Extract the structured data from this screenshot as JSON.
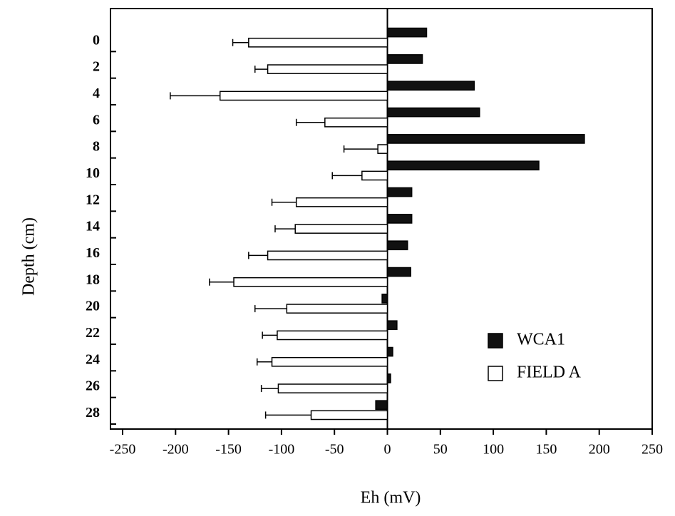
{
  "chart_data": {
    "type": "hbar",
    "xlabel": "Eh (mV)",
    "ylabel": "Depth (cm)",
    "categories": [
      "0",
      "2",
      "4",
      "6",
      "8",
      "10",
      "12",
      "14",
      "16",
      "18",
      "20",
      "22",
      "24",
      "26",
      "28"
    ],
    "series": [
      {
        "name": "WCA1",
        "color": "#111111",
        "values": [
          37,
          33,
          82,
          87,
          186,
          143,
          23,
          23,
          19,
          22,
          -5,
          9,
          5,
          3,
          -11
        ]
      },
      {
        "name": "FIELD A",
        "color": "#ffffff",
        "values": [
          -131,
          -113,
          -158,
          -59,
          -9,
          -24,
          -86,
          -87,
          -113,
          -145,
          -95,
          -104,
          -109,
          -103,
          -72
        ],
        "errors": [
          15,
          12,
          47,
          27,
          32,
          28,
          23,
          19,
          18,
          23,
          30,
          14,
          14,
          16,
          43
        ]
      }
    ],
    "xlim": [
      -250,
      250
    ],
    "xticks": [
      -250,
      -200,
      -150,
      -100,
      -50,
      0,
      50,
      100,
      150,
      200,
      250
    ],
    "legend": "lower right"
  }
}
